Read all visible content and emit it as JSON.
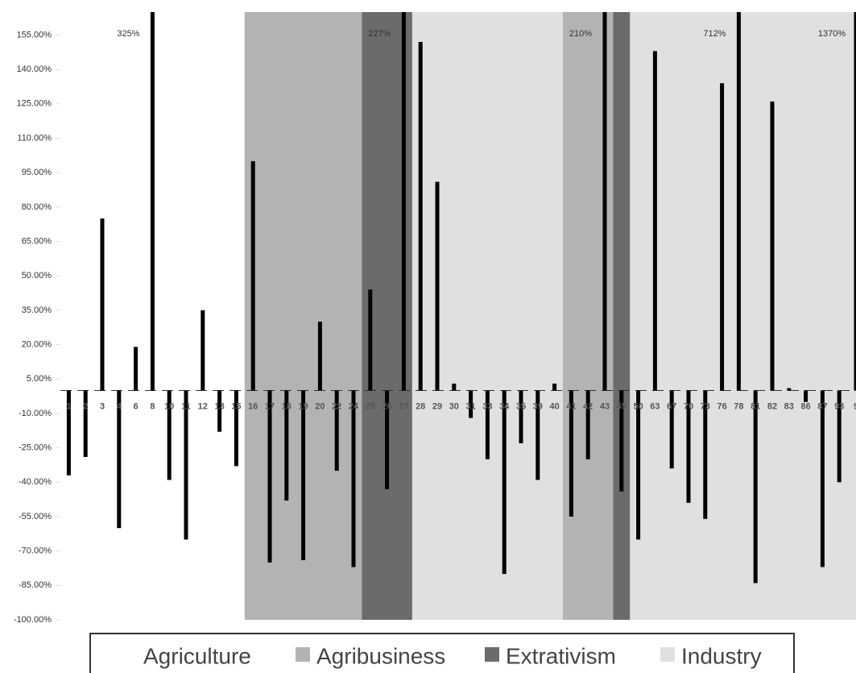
{
  "chart_data": {
    "type": "bar",
    "categories": [
      "1",
      "2",
      "3",
      "4",
      "6",
      "8",
      "10",
      "11",
      "12",
      "13",
      "15",
      "16",
      "17",
      "18",
      "19",
      "20",
      "22",
      "24",
      "25",
      "26",
      "27",
      "28",
      "29",
      "30",
      "31",
      "33",
      "34",
      "35",
      "39",
      "40",
      "41",
      "42",
      "43",
      "45",
      "50",
      "63",
      "67",
      "70",
      "73",
      "76",
      "78",
      "81",
      "82",
      "83",
      "86",
      "87",
      "93",
      "9"
    ],
    "values": [
      -37,
      -29,
      75,
      -60,
      19,
      325,
      -39,
      -65,
      35,
      -18,
      -33,
      100,
      -75,
      -48,
      -74,
      30,
      -35,
      -77,
      44,
      -43,
      227,
      152,
      91,
      3,
      -12,
      -30,
      -80,
      -23,
      -39,
      3,
      -55,
      -30,
      210,
      -44,
      -65,
      148,
      -34,
      -49,
      -56,
      134,
      712,
      -84,
      126,
      1,
      -5,
      -77,
      -40,
      1370
    ],
    "value_labels": [
      null,
      null,
      null,
      null,
      null,
      "325%",
      null,
      null,
      null,
      null,
      null,
      null,
      null,
      null,
      null,
      null,
      null,
      null,
      null,
      null,
      "227%",
      null,
      null,
      null,
      null,
      null,
      null,
      null,
      null,
      null,
      null,
      null,
      "210%",
      null,
      null,
      null,
      null,
      null,
      null,
      null,
      "712%",
      null,
      null,
      null,
      null,
      null,
      null,
      "1370%"
    ],
    "color": "#000000",
    "sector": [
      "Agriculture",
      "Agriculture",
      "Agriculture",
      "Agriculture",
      "Agriculture",
      "Agriculture",
      "Agriculture",
      "Agriculture",
      "Agriculture",
      "Agriculture",
      "Agriculture",
      "Agribusiness",
      "Agribusiness",
      "Agribusiness",
      "Agribusiness",
      "Agribusiness",
      "Agribusiness",
      "Agribusiness",
      "Extrativism",
      "Extrativism",
      "Extrativism",
      "Industry",
      "Industry",
      "Industry",
      "Industry",
      "Industry",
      "Industry",
      "Industry",
      "Industry",
      "Industry",
      "Agribusiness",
      "Agribusiness",
      "Agribusiness",
      "Extrativism",
      "Industry",
      "Industry",
      "Industry",
      "Industry",
      "Industry",
      "Industry",
      "Industry",
      "Industry",
      "Industry",
      "Industry",
      "Industry",
      "Industry",
      "Industry",
      "Industry"
    ],
    "legend": [
      {
        "name": "Agriculture",
        "color": "#ffffff"
      },
      {
        "name": "Agribusiness",
        "color": "#b3b3b3"
      },
      {
        "name": "Extrativism",
        "color": "#6b6b6b"
      },
      {
        "name": "Industry",
        "color": "#e0e0e0"
      }
    ],
    "ylim": [
      -100,
      165
    ],
    "yticks": [
      {
        "value": -100,
        "label": "-100.00%"
      },
      {
        "value": -85,
        "label": "-85.00%"
      },
      {
        "value": -70,
        "label": "-70.00%"
      },
      {
        "value": -55,
        "label": "-55.00%"
      },
      {
        "value": -40,
        "label": "-40.00%"
      },
      {
        "value": -25,
        "label": "-25.00%"
      },
      {
        "value": -10,
        "label": "-10.00%"
      },
      {
        "value": 5,
        "label": "5.00%"
      },
      {
        "value": 20,
        "label": "20.00%"
      },
      {
        "value": 35,
        "label": "35.00%"
      },
      {
        "value": 50,
        "label": "50.00%"
      },
      {
        "value": 65,
        "label": "65.00%"
      },
      {
        "value": 80,
        "label": "80.00%"
      },
      {
        "value": 95,
        "label": "95.00%"
      },
      {
        "value": 110,
        "label": "110.00%"
      },
      {
        "value": 125,
        "label": "125.00%"
      },
      {
        "value": 140,
        "label": "140.00%"
      },
      {
        "value": 155,
        "label": "155.00%"
      }
    ]
  }
}
